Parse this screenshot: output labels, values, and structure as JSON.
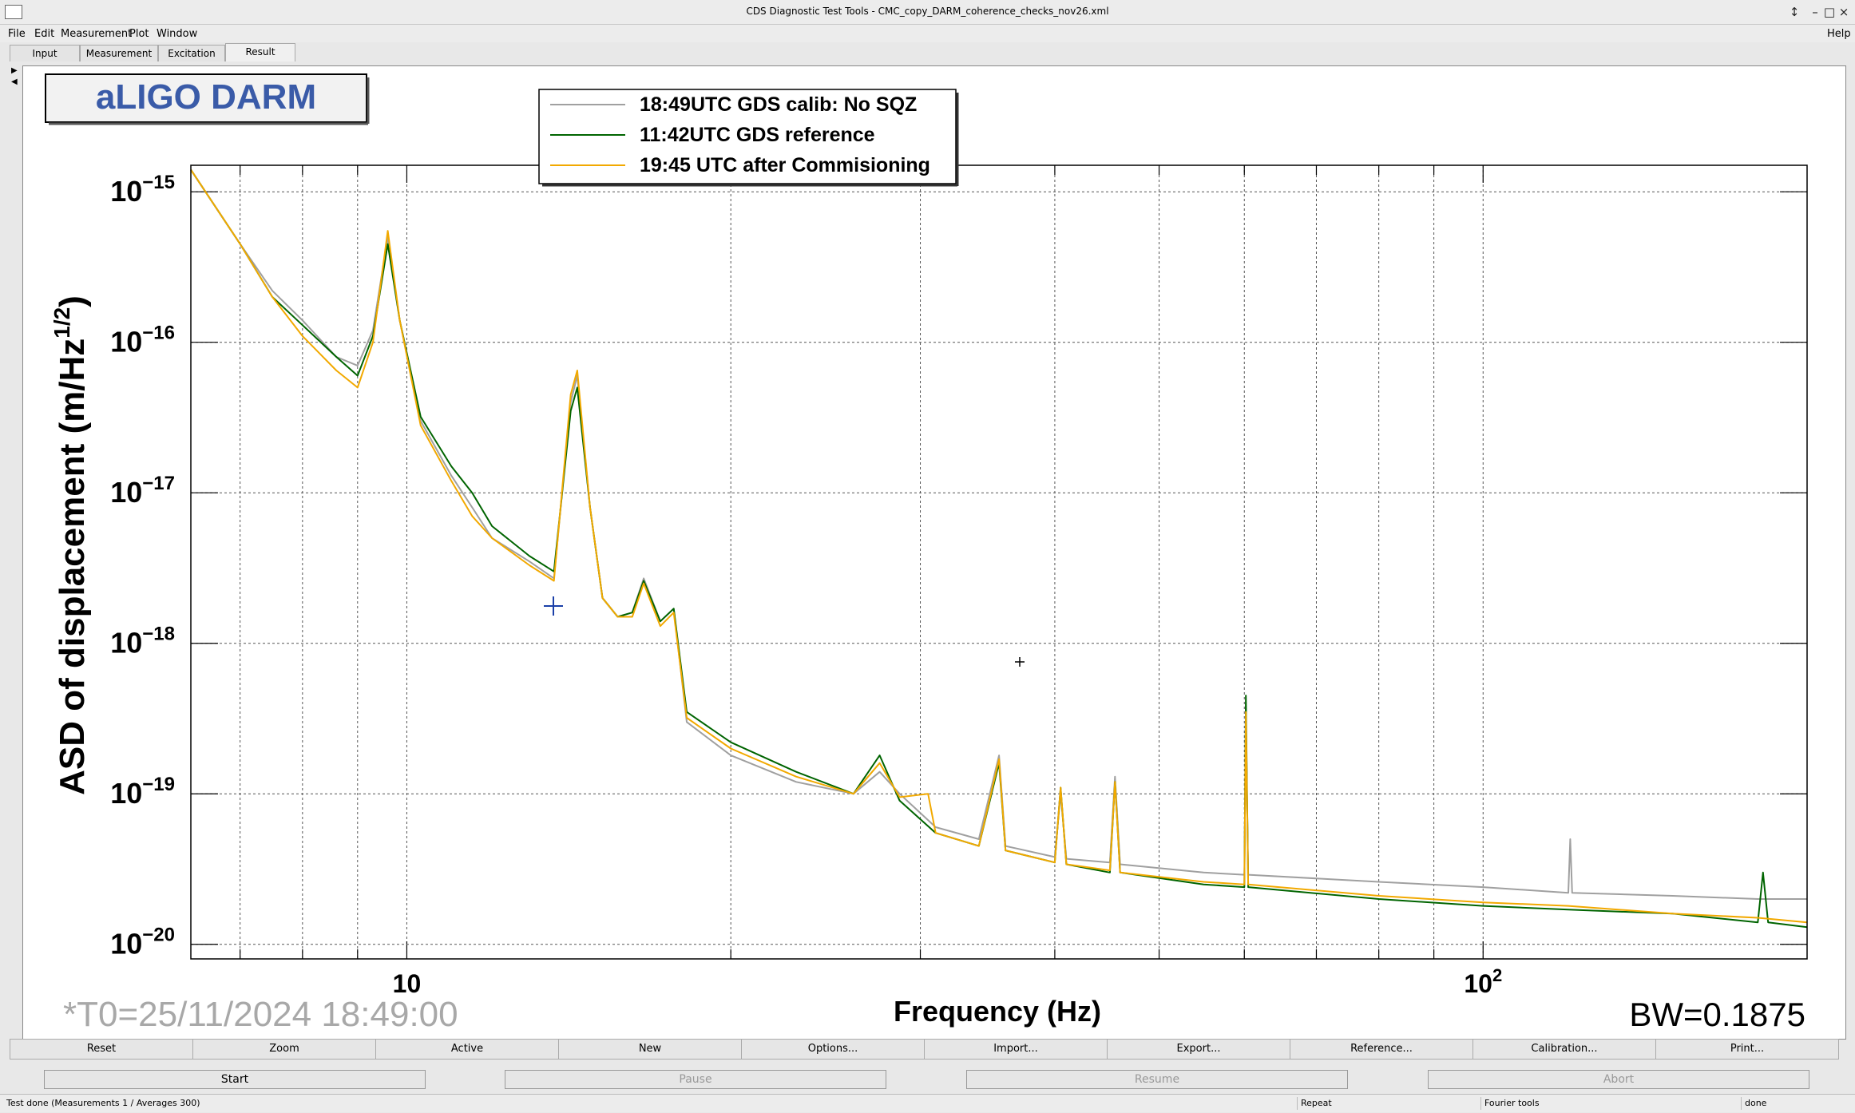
{
  "window": {
    "title": "CDS Diagnostic Test Tools - CMC_copy_DARM_coherence_checks_nov26.xml",
    "help": "Help"
  },
  "menu": [
    "File",
    "Edit",
    "Measurement",
    "Plot",
    "Window"
  ],
  "tabs": [
    "Input",
    "Measurement",
    "Excitation",
    "Result"
  ],
  "active_tab": "Result",
  "plot_label": "aLIGO DARM",
  "legend": [
    {
      "label": "18:49UTC GDS calib: No SQZ",
      "color": "#a0a0a0"
    },
    {
      "label": "11:42UTC GDS reference",
      "color": "#006400"
    },
    {
      "label": "19:45 UTC after Commisioning",
      "color": "#f2a900"
    }
  ],
  "y_label_main": "ASD of displacement (m/Hz",
  "y_label_exp": "1/2",
  "y_label_close": ")",
  "x_label": "Frequency (Hz)",
  "y_ticks": [
    {
      "value": 1e-15,
      "base": "10",
      "exp": "−15"
    },
    {
      "value": 1e-16,
      "base": "10",
      "exp": "−16"
    },
    {
      "value": 1e-17,
      "base": "10",
      "exp": "−17"
    },
    {
      "value": 1e-18,
      "base": "10",
      "exp": "−18"
    },
    {
      "value": 1e-19,
      "base": "10",
      "exp": "−19"
    },
    {
      "value": 1e-20,
      "base": "10",
      "exp": "−20"
    }
  ],
  "x_ticks": [
    {
      "value": 10,
      "base": "10",
      "exp": ""
    },
    {
      "value": 100,
      "base": "10",
      "exp": "2"
    }
  ],
  "t0": "*T0=25/11/2024 18:49:00",
  "bw": "BW=0.1875",
  "toolbar": [
    "Reset",
    "Zoom",
    "Active",
    "New",
    "Options...",
    "Import...",
    "Export...",
    "Reference...",
    "Calibration...",
    "Print..."
  ],
  "controls": [
    {
      "label": "Start",
      "enabled": true
    },
    {
      "label": "Pause",
      "enabled": false
    },
    {
      "label": "Resume",
      "enabled": false
    },
    {
      "label": "Abort",
      "enabled": false
    }
  ],
  "status": {
    "message": "Test done (Measurements 1 / Averages 300)",
    "mode": "Repeat",
    "tool": "Fourier tools",
    "state": "done"
  },
  "chart_data": {
    "type": "line",
    "x_scale": "log",
    "y_scale": "log",
    "xlim": [
      6.3,
      200
    ],
    "ylim": [
      8e-21,
      1.5e-15
    ],
    "grid": true,
    "legend_position": "top-left",
    "series": [
      {
        "color": "#a0a0a0",
        "points": [
          [
            6.3,
            1.4e-15
          ],
          [
            7,
            4.5e-16
          ],
          [
            7.5,
            2.2e-16
          ],
          [
            8,
            1.4e-16
          ],
          [
            8.6,
            8e-17
          ],
          [
            9.0,
            7e-17
          ],
          [
            9.3,
            1.2e-16
          ],
          [
            9.6,
            5e-16
          ],
          [
            9.85,
            1.4e-16
          ],
          [
            10.3,
            3e-17
          ],
          [
            11,
            1.3e-17
          ],
          [
            11.5,
            8e-18
          ],
          [
            12,
            5e-18
          ],
          [
            13,
            3.5e-18
          ],
          [
            13.7,
            2.7e-18
          ],
          [
            14.2,
            4e-17
          ],
          [
            14.4,
            6e-17
          ],
          [
            14.8,
            8e-18
          ],
          [
            15.2,
            2e-18
          ],
          [
            15.7,
            1.5e-18
          ],
          [
            16.2,
            1.6e-18
          ],
          [
            16.6,
            2.7e-18
          ],
          [
            17.2,
            1.4e-18
          ],
          [
            17.7,
            1.7e-18
          ],
          [
            18.2,
            3e-19
          ],
          [
            20,
            1.8e-19
          ],
          [
            23,
            1.2e-19
          ],
          [
            26,
            1e-19
          ],
          [
            27.5,
            1.4e-19
          ],
          [
            28.7,
            1e-19
          ],
          [
            31,
            6e-20
          ],
          [
            34,
            5e-20
          ],
          [
            35.5,
            1.8e-19
          ],
          [
            36,
            4.5e-20
          ],
          [
            40,
            3.8e-20
          ],
          [
            40.5,
            1e-19
          ],
          [
            41,
            3.7e-20
          ],
          [
            45,
            3.5e-20
          ],
          [
            45.5,
            1.3e-19
          ],
          [
            46,
            3.4e-20
          ],
          [
            55,
            3e-20
          ],
          [
            60,
            2.9e-20
          ],
          [
            60.2,
            3e-19
          ],
          [
            60.5,
            2.9e-20
          ],
          [
            80,
            2.6e-20
          ],
          [
            100,
            2.4e-20
          ],
          [
            120,
            2.2e-20
          ],
          [
            120.5,
            5e-20
          ],
          [
            121,
            2.2e-20
          ],
          [
            150,
            2.1e-20
          ],
          [
            180,
            2e-20
          ],
          [
            200,
            2e-20
          ]
        ]
      },
      {
        "color": "#006400",
        "points": [
          [
            6.3,
            1.4e-15
          ],
          [
            7,
            4.5e-16
          ],
          [
            7.5,
            2e-16
          ],
          [
            8,
            1.3e-16
          ],
          [
            8.6,
            8e-17
          ],
          [
            9.0,
            6e-17
          ],
          [
            9.3,
            1.1e-16
          ],
          [
            9.6,
            4.5e-16
          ],
          [
            9.85,
            1.4e-16
          ],
          [
            10.3,
            3.2e-17
          ],
          [
            11,
            1.5e-17
          ],
          [
            11.5,
            1e-17
          ],
          [
            12,
            6e-18
          ],
          [
            13,
            3.8e-18
          ],
          [
            13.7,
            3e-18
          ],
          [
            14.2,
            3.5e-17
          ],
          [
            14.4,
            5e-17
          ],
          [
            14.8,
            8e-18
          ],
          [
            15.2,
            2e-18
          ],
          [
            15.7,
            1.5e-18
          ],
          [
            16.2,
            1.6e-18
          ],
          [
            16.6,
            2.6e-18
          ],
          [
            17.2,
            1.4e-18
          ],
          [
            17.7,
            1.7e-18
          ],
          [
            18.2,
            3.5e-19
          ],
          [
            20,
            2.2e-19
          ],
          [
            23,
            1.4e-19
          ],
          [
            26,
            1e-19
          ],
          [
            27.5,
            1.8e-19
          ],
          [
            28.7,
            9e-20
          ],
          [
            31,
            5.5e-20
          ],
          [
            34,
            4.5e-20
          ],
          [
            35.5,
            1.6e-19
          ],
          [
            36,
            4.2e-20
          ],
          [
            40,
            3.5e-20
          ],
          [
            40.5,
            1.1e-19
          ],
          [
            41,
            3.4e-20
          ],
          [
            45,
            3e-20
          ],
          [
            45.5,
            1.2e-19
          ],
          [
            46,
            3e-20
          ],
          [
            55,
            2.5e-20
          ],
          [
            60,
            2.4e-20
          ],
          [
            60.2,
            4.5e-19
          ],
          [
            60.5,
            2.4e-20
          ],
          [
            80,
            2e-20
          ],
          [
            100,
            1.8e-20
          ],
          [
            120,
            1.7e-20
          ],
          [
            150,
            1.6e-20
          ],
          [
            180,
            1.4e-20
          ],
          [
            182,
            3e-20
          ],
          [
            184,
            1.4e-20
          ],
          [
            200,
            1.3e-20
          ]
        ]
      },
      {
        "color": "#f2a900",
        "points": [
          [
            6.3,
            1.4e-15
          ],
          [
            7,
            4.5e-16
          ],
          [
            7.5,
            2e-16
          ],
          [
            8,
            1.1e-16
          ],
          [
            8.6,
            6.5e-17
          ],
          [
            9.0,
            5e-17
          ],
          [
            9.3,
            1e-16
          ],
          [
            9.6,
            5.5e-16
          ],
          [
            9.85,
            1.4e-16
          ],
          [
            10.3,
            2.8e-17
          ],
          [
            11,
            1.2e-17
          ],
          [
            11.5,
            7e-18
          ],
          [
            12,
            5e-18
          ],
          [
            13,
            3.3e-18
          ],
          [
            13.7,
            2.6e-18
          ],
          [
            14.2,
            4.5e-17
          ],
          [
            14.4,
            6.5e-17
          ],
          [
            14.8,
            8e-18
          ],
          [
            15.2,
            2e-18
          ],
          [
            15.7,
            1.5e-18
          ],
          [
            16.2,
            1.5e-18
          ],
          [
            16.6,
            2.5e-18
          ],
          [
            17.2,
            1.3e-18
          ],
          [
            17.7,
            1.6e-18
          ],
          [
            18.2,
            3.2e-19
          ],
          [
            20,
            2e-19
          ],
          [
            23,
            1.3e-19
          ],
          [
            26,
            1e-19
          ],
          [
            27.5,
            1.6e-19
          ],
          [
            28.7,
            9.5e-20
          ],
          [
            30.5,
            1e-19
          ],
          [
            31,
            5.5e-20
          ],
          [
            34,
            4.5e-20
          ],
          [
            35.5,
            1.7e-19
          ],
          [
            36,
            4.2e-20
          ],
          [
            40,
            3.5e-20
          ],
          [
            40.5,
            1.1e-19
          ],
          [
            41,
            3.4e-20
          ],
          [
            45,
            3.1e-20
          ],
          [
            45.5,
            1.2e-19
          ],
          [
            46,
            3e-20
          ],
          [
            55,
            2.6e-20
          ],
          [
            60,
            2.5e-20
          ],
          [
            60.2,
            3.5e-19
          ],
          [
            60.5,
            2.5e-20
          ],
          [
            80,
            2.1e-20
          ],
          [
            100,
            1.9e-20
          ],
          [
            120,
            1.8e-20
          ],
          [
            150,
            1.6e-20
          ],
          [
            180,
            1.5e-20
          ],
          [
            200,
            1.4e-20
          ]
        ]
      }
    ]
  }
}
